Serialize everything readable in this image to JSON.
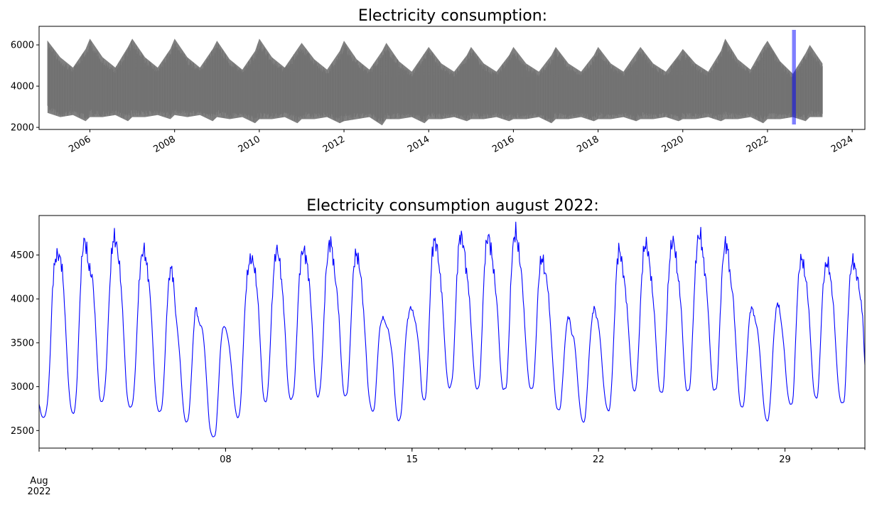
{
  "chart_data": [
    {
      "type": "area",
      "title": "Electricity consumption:",
      "xlabel": "",
      "ylabel": "",
      "x_range": [
        2004.8,
        2024.3
      ],
      "ylim": [
        1900,
        6900
      ],
      "y_ticks": [
        2000,
        4000,
        6000
      ],
      "x_ticks": [
        {
          "value": 2006,
          "label": "2006"
        },
        {
          "value": 2008,
          "label": "2008"
        },
        {
          "value": 2010,
          "label": "2010"
        },
        {
          "value": 2012,
          "label": "2012"
        },
        {
          "value": 2014,
          "label": "2014"
        },
        {
          "value": 2016,
          "label": "2016"
        },
        {
          "value": 2018,
          "label": "2018"
        },
        {
          "value": 2020,
          "label": "2020"
        },
        {
          "value": 2022,
          "label": "2022"
        },
        {
          "value": 2024,
          "label": "2024"
        }
      ],
      "series": [
        {
          "color": "#808080",
          "x": [
            2005.0,
            2005.3,
            2005.6,
            2005.9,
            2006.0,
            2006.3,
            2006.6,
            2006.9,
            2007.0,
            2007.3,
            2007.6,
            2007.9,
            2008.0,
            2008.3,
            2008.6,
            2008.9,
            2009.0,
            2009.3,
            2009.6,
            2009.9,
            2010.0,
            2010.3,
            2010.6,
            2010.9,
            2011.0,
            2011.3,
            2011.6,
            2011.9,
            2012.0,
            2012.3,
            2012.6,
            2012.9,
            2013.0,
            2013.3,
            2013.6,
            2013.9,
            2014.0,
            2014.3,
            2014.6,
            2014.9,
            2015.0,
            2015.3,
            2015.6,
            2015.9,
            2016.0,
            2016.3,
            2016.6,
            2016.9,
            2017.0,
            2017.3,
            2017.6,
            2017.9,
            2018.0,
            2018.3,
            2018.6,
            2018.9,
            2019.0,
            2019.3,
            2019.6,
            2019.9,
            2020.0,
            2020.3,
            2020.6,
            2020.9,
            2021.0,
            2021.3,
            2021.6,
            2021.9,
            2022.0,
            2022.3,
            2022.6,
            2022.9,
            2023.0,
            2023.3
          ],
          "high": [
            6200,
            5400,
            4900,
            5800,
            6300,
            5400,
            4900,
            5900,
            6300,
            5400,
            4900,
            5800,
            6300,
            5400,
            4900,
            5800,
            6200,
            5300,
            4800,
            5700,
            6300,
            5400,
            4900,
            5800,
            6100,
            5300,
            4800,
            5700,
            6200,
            5300,
            4800,
            5700,
            6100,
            5200,
            4700,
            5600,
            5900,
            5100,
            4700,
            5500,
            5900,
            5100,
            4700,
            5500,
            5900,
            5100,
            4700,
            5500,
            5900,
            5100,
            4700,
            5500,
            5900,
            5100,
            4700,
            5600,
            5900,
            5100,
            4700,
            5500,
            5800,
            5100,
            4700,
            5700,
            6300,
            5300,
            4800,
            5900,
            6200,
            5200,
            4600,
            5600,
            6000,
            5100
          ],
          "low": [
            2700,
            2500,
            2600,
            2300,
            2500,
            2500,
            2600,
            2300,
            2500,
            2500,
            2600,
            2400,
            2600,
            2500,
            2600,
            2300,
            2500,
            2400,
            2500,
            2200,
            2400,
            2400,
            2500,
            2200,
            2400,
            2400,
            2500,
            2200,
            2300,
            2400,
            2500,
            2100,
            2400,
            2400,
            2500,
            2200,
            2400,
            2400,
            2500,
            2300,
            2400,
            2400,
            2500,
            2300,
            2400,
            2400,
            2500,
            2200,
            2400,
            2400,
            2500,
            2300,
            2400,
            2400,
            2500,
            2300,
            2400,
            2400,
            2500,
            2300,
            2400,
            2400,
            2500,
            2300,
            2400,
            2400,
            2500,
            2200,
            2400,
            2400,
            2500,
            2300,
            2500,
            2500
          ]
        }
      ],
      "highlight": {
        "x_range": [
          2022.58,
          2022.67
        ],
        "color": "#0000ff"
      }
    },
    {
      "type": "line",
      "title": "Electricity consumption august 2022:",
      "xlabel": "",
      "ylabel": "",
      "x_range": [
        1,
        32
      ],
      "ylim": [
        2300,
        4950
      ],
      "y_ticks": [
        2500,
        3000,
        3500,
        4000,
        4500
      ],
      "x_ticks": [
        {
          "value": 1,
          "label": "Aug\n2022"
        },
        {
          "value": 8,
          "label": "08"
        },
        {
          "value": 15,
          "label": "15"
        },
        {
          "value": 22,
          "label": "22"
        },
        {
          "value": 29,
          "label": "29"
        }
      ],
      "series": [
        {
          "color": "#0000ff",
          "start_day": 1,
          "values": [
            2800,
            2680,
            2650,
            2700,
            2900,
            3400,
            4100,
            4400,
            4500,
            4480,
            4400,
            4100,
            3600,
            3100,
            2800,
            2700,
            2750,
            3100,
            3800,
            4400,
            4650,
            4600,
            4400,
            4300,
            4200,
            3800,
            3300,
            2900,
            2830,
            2900,
            3200,
            3800,
            4350,
            4650,
            4680,
            4550,
            4350,
            4000,
            3500,
            3000,
            2800,
            2770,
            2850,
            3200,
            3800,
            4300,
            4500,
            4550,
            4400,
            4200,
            3900,
            3400,
            2950,
            2750,
            2720,
            2800,
            3200,
            3800,
            4200,
            4350,
            4200,
            3850,
            3600,
            3300,
            2900,
            2650,
            2600,
            2700,
            3100,
            3600,
            3900,
            3780,
            3700,
            3650,
            3400,
            3000,
            2600,
            2460,
            2430,
            2500,
            2900,
            3400,
            3650,
            3680,
            3600,
            3450,
            3200,
            2900,
            2700,
            2650,
            2800,
            3300,
            3900,
            4250,
            4420,
            4450,
            4380,
            4200,
            3900,
            3400,
            2950,
            2830,
            2900,
            3300,
            3900,
            4350,
            4550,
            4500,
            4300,
            4000,
            3600,
            3100,
            2880,
            2870,
            3000,
            3500,
            4100,
            4450,
            4550,
            4500,
            4350,
            4100,
            3700,
            3200,
            2920,
            2900,
            3100,
            3600,
            4200,
            4500,
            4650,
            4550,
            4300,
            4100,
            3800,
            3300,
            2950,
            2900,
            3000,
            3500,
            4100,
            4450,
            4500,
            4380,
            4200,
            3850,
            3450,
            3000,
            2800,
            2720,
            2800,
            3200,
            3600,
            3750,
            3780,
            3700,
            3650,
            3500,
            3300,
            2900,
            2650,
            2620,
            2750,
            3200,
            3600,
            3800,
            3900,
            3850,
            3750,
            3600,
            3350,
            2950,
            2850,
            2950,
            3500,
            4200,
            4600,
            4650,
            4550,
            4300,
            4050,
            3600,
            3200,
            3000,
            3020,
            3200,
            3800,
            4400,
            4700,
            4680,
            4550,
            4300,
            4100,
            3700,
            3300,
            3020,
            2980,
            3100,
            3700,
            4350,
            4650,
            4700,
            4550,
            4350,
            4100,
            3800,
            3300,
            3000,
            2980,
            3050,
            3600,
            4300,
            4650,
            4750,
            4600,
            4400,
            4150,
            3700,
            3300,
            3030,
            2980,
            3050,
            3500,
            4100,
            4400,
            4450,
            4300,
            4200,
            3900,
            3500,
            3100,
            2800,
            2740,
            2780,
            3100,
            3500,
            3750,
            3780,
            3600,
            3550,
            3300,
            2950,
            2700,
            2600,
            2650,
            3000,
            3450,
            3750,
            3900,
            3800,
            3700,
            3450,
            3100,
            2850,
            2740,
            2760,
            3100,
            3700,
            4300,
            4550,
            4480,
            4300,
            4100,
            3800,
            3400,
            3050,
            2950,
            3050,
            3500,
            4100,
            4500,
            4620,
            4550,
            4350,
            4100,
            3800,
            3350,
            3000,
            2940,
            3000,
            3500,
            4100,
            4500,
            4650,
            4600,
            4350,
            4150,
            3850,
            3350,
            3000,
            2960,
            3050,
            3600,
            4200,
            4600,
            4720,
            4650,
            4400,
            4200,
            3850,
            3350,
            3000,
            2970,
            3050,
            3600,
            4200,
            4550,
            4620,
            4500,
            4200,
            4050,
            3650,
            3200,
            2850,
            2770,
            2830,
            3200,
            3650,
            3880,
            3870,
            3750,
            3650,
            3400,
            3050,
            2750,
            2620,
            2650,
            2950,
            3450,
            3800,
            3950,
            3850,
            3650,
            3400,
            3050,
            2850,
            2800,
            2900,
            3500,
            4100,
            4400,
            4450,
            4300,
            4150,
            3850,
            3400,
            3000,
            2880,
            2930,
            3400,
            4000,
            4300,
            4400,
            4350,
            4150,
            3900,
            3450,
            3050,
            2850,
            2820,
            2900,
            3500,
            4100,
            4380,
            4420,
            4300,
            4200,
            4000,
            3800,
            3250
          ]
        }
      ]
    }
  ]
}
